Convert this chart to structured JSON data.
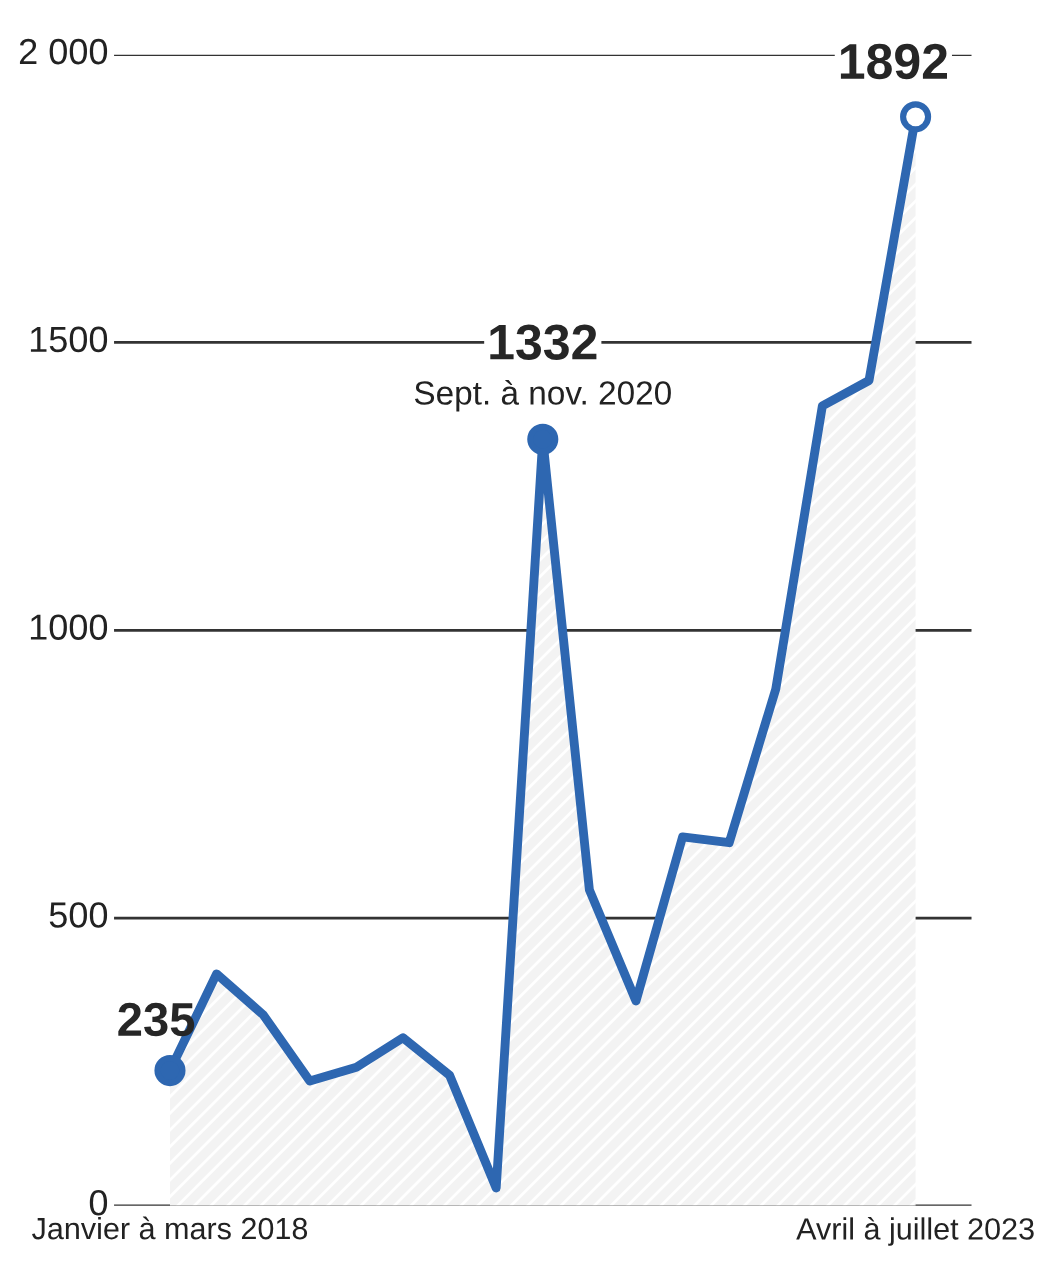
{
  "chart_data": {
    "type": "area",
    "categories": [
      "Janvier à mars 2018",
      null,
      null,
      null,
      null,
      null,
      null,
      null,
      null,
      null,
      null,
      null,
      null,
      null,
      null,
      null,
      "Avril à juillet 2023"
    ],
    "series": [
      {
        "color": "#2e67b1",
        "values": [
          235,
          403,
          332,
          217,
          241,
          292,
          227,
          31,
          1332,
          549,
          356,
          641,
          631,
          898,
          1390,
          1434,
          1892
        ]
      }
    ],
    "ylim": [
      0,
      2000
    ],
    "yticks": [
      0,
      500,
      1000,
      1500,
      {
        "value": 2000,
        "label": "2 000"
      }
    ],
    "grid": "y",
    "annotations": [
      {
        "text": "235",
        "x": "Janvier à mars 2018",
        "y": 235
      },
      {
        "text": "1332",
        "y": 1332
      },
      {
        "text": "Sept. à nov. 2020",
        "y": 1332
      },
      {
        "text": "1892",
        "x": "Avril à juillet 2023",
        "y": 1892
      }
    ]
  }
}
